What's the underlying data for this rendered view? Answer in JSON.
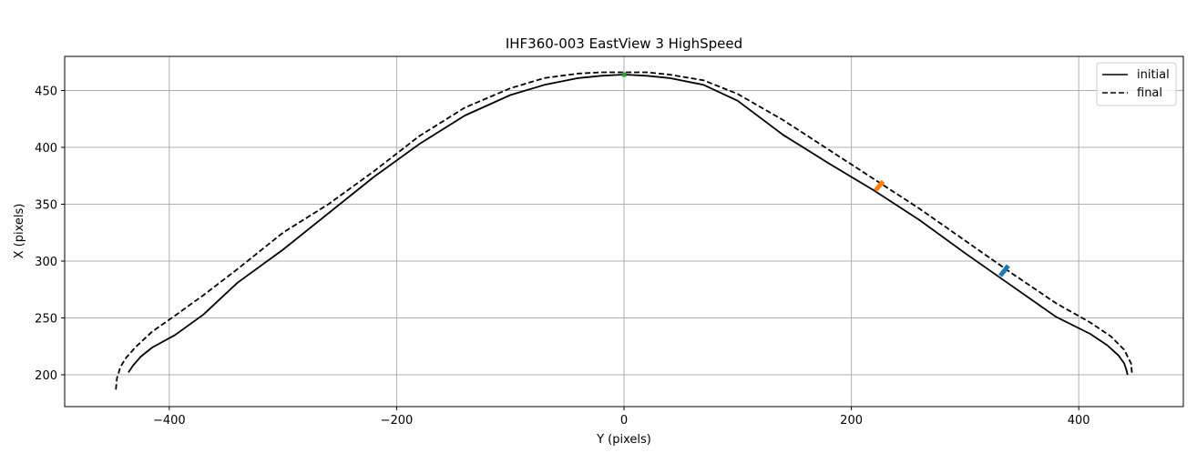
{
  "chart_data": {
    "type": "line",
    "title": "IHF360-003 EastView 3 HighSpeed",
    "xlabel": "Y (pixels)",
    "ylabel": "X (pixels)",
    "xlim": [
      -492,
      492
    ],
    "ylim": [
      172,
      480
    ],
    "xticks": [
      -400,
      -200,
      0,
      200,
      400
    ],
    "yticks": [
      200,
      250,
      300,
      350,
      400,
      450
    ],
    "xtick_labels": [
      "−400",
      "−200",
      "0",
      "200",
      "400"
    ],
    "ytick_labels": [
      "200",
      "250",
      "300",
      "350",
      "400",
      "450"
    ],
    "grid": true,
    "legend": {
      "position": "top-right",
      "entries": [
        {
          "label": "initial",
          "style": "solid",
          "color": "#000000"
        },
        {
          "label": "final",
          "style": "dashed",
          "color": "#000000"
        }
      ]
    },
    "series": [
      {
        "name": "initial",
        "style": "solid",
        "color": "#000000",
        "x": [
          -436,
          -432,
          -425,
          -415,
          -395,
          -370,
          -340,
          -300,
          -260,
          -220,
          -180,
          -140,
          -100,
          -70,
          -40,
          -20,
          0,
          20,
          40,
          70,
          100,
          140,
          180,
          220,
          260,
          300,
          340,
          380,
          410,
          425,
          435,
          440,
          442,
          443
        ],
        "y": [
          202,
          208,
          216,
          224,
          235,
          253,
          281,
          310,
          342,
          374,
          403,
          428,
          446,
          455,
          461,
          463,
          464,
          463,
          461,
          455,
          441,
          411,
          386,
          362,
          336,
          307,
          279,
          251,
          236,
          226,
          217,
          210,
          204,
          200
        ]
      },
      {
        "name": "final",
        "style": "dashed",
        "color": "#000000",
        "x": [
          -447,
          -446,
          -443,
          -438,
          -430,
          -415,
          -395,
          -370,
          -340,
          -300,
          -260,
          -220,
          -180,
          -140,
          -100,
          -70,
          -40,
          -20,
          0,
          20,
          40,
          70,
          100,
          140,
          180,
          220,
          260,
          300,
          340,
          380,
          410,
          428,
          440,
          446,
          447
        ],
        "y": [
          187,
          197,
          207,
          215,
          224,
          238,
          252,
          270,
          293,
          325,
          350,
          379,
          410,
          435,
          452,
          461,
          465,
          466,
          466,
          466,
          464,
          459,
          447,
          424,
          398,
          372,
          346,
          318,
          290,
          263,
          246,
          234,
          222,
          210,
          200
        ]
      }
    ],
    "markers": [
      {
        "color": "#2ca02c",
        "x": [
          0,
          0
        ],
        "y": [
          462,
          466
        ]
      },
      {
        "color": "#ff7f0e",
        "x": [
          221,
          228
        ],
        "y": [
          362,
          370
        ]
      },
      {
        "color": "#1f77b4",
        "x": [
          331,
          338
        ],
        "y": [
          287,
          296
        ]
      }
    ]
  }
}
